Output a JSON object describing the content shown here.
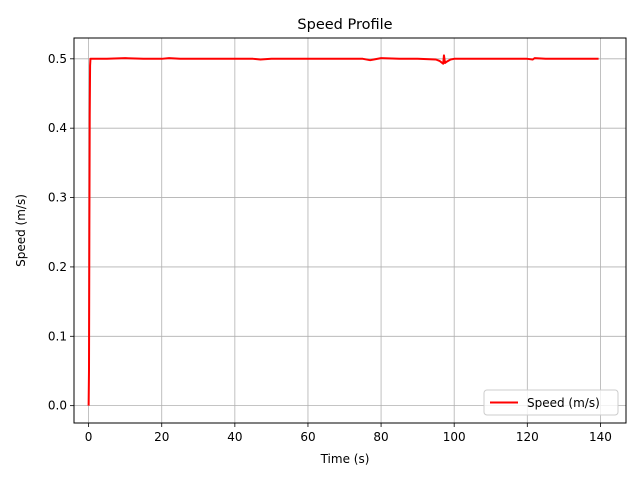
{
  "chart_data": {
    "type": "line",
    "title": "Speed Profile",
    "xlabel": "Time (s)",
    "ylabel": "Speed (m/s)",
    "xlim": [
      -4,
      147
    ],
    "ylim": [
      -0.025,
      0.53
    ],
    "xticks": [
      0,
      20,
      40,
      60,
      80,
      100,
      120,
      140
    ],
    "yticks": [
      0.0,
      0.1,
      0.2,
      0.3,
      0.4,
      0.5
    ],
    "ytick_labels": [
      "0.0",
      "0.1",
      "0.2",
      "0.3",
      "0.4",
      "0.5"
    ],
    "grid": true,
    "legend": {
      "position": "lower-right",
      "entries": [
        "Speed (m/s)"
      ]
    },
    "series": [
      {
        "name": "Speed (m/s)",
        "color": "#ff0000",
        "x": [
          0,
          0.1,
          0.2,
          0.3,
          0.4,
          0.5,
          1,
          5,
          10,
          15,
          20,
          22,
          25,
          30,
          35,
          40,
          45,
          47,
          50,
          55,
          60,
          65,
          70,
          75,
          77,
          78,
          80,
          85,
          90,
          95,
          96,
          96.5,
          97,
          97.2,
          97.5,
          98,
          99,
          100,
          105,
          110,
          115,
          120,
          121.5,
          122,
          125,
          130,
          135,
          139.5
        ],
        "y": [
          0.0,
          0.05,
          0.25,
          0.42,
          0.49,
          0.5,
          0.5,
          0.5,
          0.501,
          0.5,
          0.5,
          0.501,
          0.5,
          0.5,
          0.5,
          0.5,
          0.5,
          0.499,
          0.5,
          0.5,
          0.5,
          0.5,
          0.5,
          0.5,
          0.498,
          0.499,
          0.501,
          0.5,
          0.5,
          0.499,
          0.497,
          0.495,
          0.493,
          0.505,
          0.494,
          0.496,
          0.499,
          0.5,
          0.5,
          0.5,
          0.5,
          0.5,
          0.499,
          0.501,
          0.5,
          0.5,
          0.5,
          0.5
        ]
      }
    ]
  }
}
